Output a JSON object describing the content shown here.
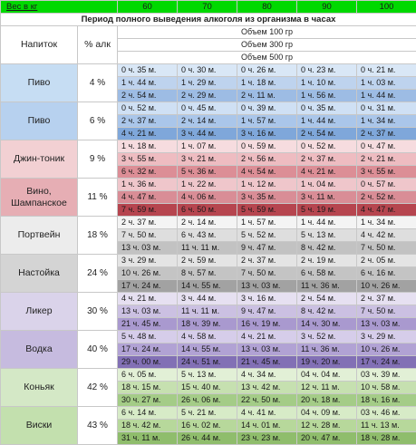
{
  "header": {
    "weight_label": "Вес в кг",
    "weights": [
      "60",
      "70",
      "80",
      "90",
      "100"
    ],
    "period_title": "Период полного выведения алкоголя из организма в часах"
  },
  "columns": {
    "drink": "Напиток",
    "percent": "% алк",
    "volumes": [
      "Объем 100 гр",
      "Объем 300 гр",
      "Объем 500 гр"
    ]
  },
  "colors": {
    "header_green": "#00d900",
    "beer_label_bg": "#c6ddf3",
    "row_light": "#d6e6f6",
    "row_mid": "#b8d0ec",
    "row_dark": "#7ea6d6"
  },
  "drinks": [
    {
      "name": "Пиво",
      "percent": "4 %",
      "rows": [
        [
          "0 ч. 35 м.",
          "0 ч. 30 м.",
          "0 ч. 26 м.",
          "0 ч. 23 м.",
          "0 ч. 21 м."
        ],
        [
          "1 ч. 44 м.",
          "1 ч. 29 м.",
          "1 ч. 18 м.",
          "1 ч. 10 м.",
          "1 ч. 03 м."
        ],
        [
          "2 ч. 54 м.",
          "2 ч. 29 м.",
          "2 ч. 11 м.",
          "1 ч. 56 м.",
          "1 ч. 44 м."
        ]
      ],
      "colors": {
        "label": "#c6ddf3",
        "rows": [
          "#d9e7f6",
          "#bed3ee",
          "#9dbce4"
        ]
      }
    },
    {
      "name": "Пиво",
      "percent": "6 %",
      "rows": [
        [
          "0 ч. 52 м.",
          "0 ч. 45 м.",
          "0 ч. 39 м.",
          "0 ч. 35 м.",
          "0 ч. 31 м."
        ],
        [
          "2 ч. 37 м.",
          "2 ч. 14 м.",
          "1 ч. 57 м.",
          "1 ч. 44 м.",
          "1 ч. 34 м."
        ],
        [
          "4 ч. 21 м.",
          "3 ч. 44 м.",
          "3 ч. 16 м.",
          "2 ч. 54 м.",
          "2 ч. 37 м."
        ]
      ],
      "colors": {
        "label": "#b7d1ef",
        "rows": [
          "#cfe0f4",
          "#aac6ea",
          "#7fa7da"
        ]
      }
    },
    {
      "name": "Джин-тоник",
      "percent": "9 %",
      "rows": [
        [
          "1 ч. 18 м.",
          "1 ч. 07 м.",
          "0 ч. 59 м.",
          "0 ч. 52 м.",
          "0 ч. 47 м."
        ],
        [
          "3 ч. 55 м.",
          "3 ч. 21 м.",
          "2 ч. 56 м.",
          "2 ч. 37 м.",
          "2 ч. 21 м."
        ],
        [
          "6 ч. 32 м.",
          "5 ч. 36 м.",
          "4 ч. 54 м.",
          "4 ч. 21 м.",
          "3 ч. 55 м."
        ]
      ],
      "colors": {
        "label": "#f2d0d3",
        "rows": [
          "#f6dcdf",
          "#eebcc1",
          "#dc8e96"
        ]
      }
    },
    {
      "name": "Вино, Шампанское",
      "percent": "11 %",
      "rows": [
        [
          "1 ч. 36 м.",
          "1 ч. 22 м.",
          "1 ч. 12 м.",
          "1 ч. 04 м.",
          "0 ч. 57 м."
        ],
        [
          "4 ч. 47 м.",
          "4 ч. 06 м.",
          "3 ч. 35 м.",
          "3 ч. 11 м.",
          "2 ч. 52 м."
        ],
        [
          "7 ч. 59 м.",
          "6 ч. 50 м.",
          "5 ч. 59 м.",
          "5 ч. 19 м.",
          "4 ч. 47 м."
        ]
      ],
      "colors": {
        "label": "#e6aeb4",
        "rows": [
          "#efc6cb",
          "#d98d96",
          "#b6454f"
        ]
      }
    },
    {
      "name": "Портвейн",
      "percent": "18 %",
      "rows": [
        [
          "2 ч. 37 м.",
          "2 ч. 14 м.",
          "1 ч. 57 м.",
          "1 ч. 44 м.",
          "1 ч. 34 м."
        ],
        [
          "7 ч. 50 м.",
          "6 ч. 43 м.",
          "5 ч. 52 м.",
          "5 ч. 13 м.",
          "4 ч. 42 м."
        ],
        [
          "13 ч. 03 м.",
          "11 ч. 11 м.",
          "9 ч. 47 м.",
          "8 ч. 42 м.",
          "7 ч. 50 м."
        ]
      ],
      "colors": {
        "label": "#ececec",
        "rows": [
          "#f4f4f4",
          "#dedede",
          "#c2c2c2"
        ]
      }
    },
    {
      "name": "Настойка",
      "percent": "24 %",
      "rows": [
        [
          "3 ч. 29 м.",
          "2 ч. 59 м.",
          "2 ч. 37 м.",
          "2 ч. 19 м.",
          "2 ч. 05 м."
        ],
        [
          "10 ч. 26 м.",
          "8 ч. 57 м.",
          "7 ч. 50 м.",
          "6 ч. 58 м.",
          "6 ч. 16 м."
        ],
        [
          "17 ч. 24 м.",
          "14 ч. 55 м.",
          "13 ч. 03 м.",
          "11 ч. 36 м.",
          "10 ч. 26 м."
        ]
      ],
      "colors": {
        "label": "#d4d4d4",
        "rows": [
          "#e4e4e4",
          "#c4c4c4",
          "#a2a2a2"
        ]
      }
    },
    {
      "name": "Ликер",
      "percent": "30 %",
      "rows": [
        [
          "4 ч. 21 м.",
          "3 ч. 44 м.",
          "3 ч. 16 м.",
          "2 ч. 54 м.",
          "2 ч. 37 м."
        ],
        [
          "13 ч. 03 м.",
          "11 ч. 11 м.",
          "9 ч. 47 м.",
          "8 ч. 42 м.",
          "7 ч. 50 м."
        ],
        [
          "21 ч. 45 м.",
          "18 ч. 39 м.",
          "16 ч. 19 м.",
          "14 ч. 30 м.",
          "13 ч. 03 м."
        ]
      ],
      "colors": {
        "label": "#dad3ea",
        "rows": [
          "#e6e0f1",
          "#cbc0e2",
          "#a999cf"
        ]
      }
    },
    {
      "name": "Водка",
      "percent": "40 %",
      "rows": [
        [
          "5 ч. 48 м.",
          "4 ч. 58 м.",
          "4 ч. 21 м.",
          "3 ч. 52 м.",
          "3 ч. 29 м."
        ],
        [
          "17 ч. 24 м.",
          "14 ч. 55 м.",
          "13 ч. 03 м.",
          "11 ч. 36 м.",
          "10 ч. 26 м."
        ],
        [
          "29 ч. 00 м.",
          "24 ч. 51 м.",
          "21 ч. 45 м.",
          "19 ч. 20 м.",
          "17 ч. 24 м."
        ]
      ],
      "colors": {
        "label": "#c6bbdf",
        "rows": [
          "#d6cdea",
          "#b1a2d4",
          "#8270b5"
        ]
      }
    },
    {
      "name": "Коньяк",
      "percent": "42 %",
      "rows": [
        [
          "6 ч. 05 м.",
          "5 ч. 13 м.",
          "4 ч. 34 м.",
          "04 ч. 04 м.",
          "03 ч. 39 м."
        ],
        [
          "18 ч. 15 м.",
          "15 ч. 40 м.",
          "13 ч. 42 м.",
          "12 ч. 11 м.",
          "10 ч. 58 м."
        ],
        [
          "30 ч. 27 м.",
          "26 ч. 06 м.",
          "22 ч. 50 м.",
          "20 ч. 18 м.",
          "18 ч. 16 м."
        ]
      ],
      "colors": {
        "label": "#d4e8c6",
        "rows": [
          "#e2f0d6",
          "#c6e0b0",
          "#a4cc87"
        ]
      }
    },
    {
      "name": "Виски",
      "percent": "43 %",
      "rows": [
        [
          "6 ч. 14 м.",
          "5 ч. 21 м.",
          "4 ч. 41 м.",
          "04 ч. 09 м.",
          "03 ч. 46 м."
        ],
        [
          "18 ч. 42 м.",
          "16 ч. 02 м.",
          "14 ч. 01 м.",
          "12 ч. 28 м.",
          "11 ч. 13 м."
        ],
        [
          "31 ч. 11 м.",
          "26 ч. 44 м.",
          "23 ч. 23 м.",
          "20 ч. 47 м.",
          "18 ч. 28 м."
        ]
      ],
      "colors": {
        "label": "#c3e0ae",
        "rows": [
          "#d7ebc7",
          "#b7d89b",
          "#8fbd6c"
        ]
      }
    }
  ]
}
